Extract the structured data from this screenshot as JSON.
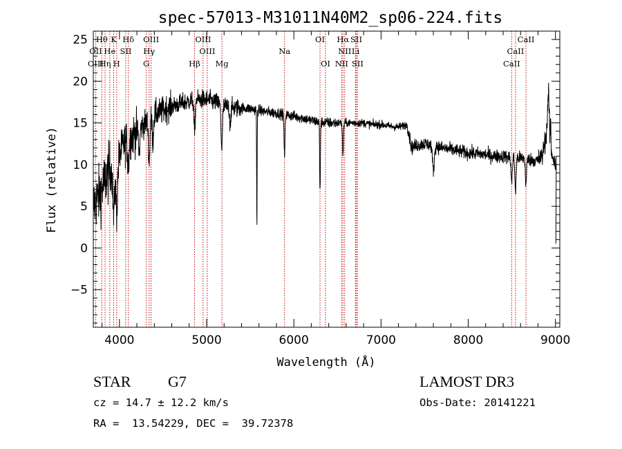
{
  "chart_data": {
    "type": "line",
    "title": "spec-57013-M31011N40M2_sp06-224.fits",
    "xlabel": "Wavelength (Å)",
    "ylabel": "Flux (relative)",
    "xlim": [
      3700,
      9050
    ],
    "ylim": [
      -9.5,
      26
    ],
    "xticks": [
      4000,
      5000,
      6000,
      7000,
      8000,
      9000
    ],
    "xtick_labels": [
      "4000",
      "5000",
      "6000",
      "7000",
      "8000",
      "9000"
    ],
    "yticks": [
      -5,
      0,
      5,
      10,
      15,
      20,
      25
    ],
    "ytick_labels": [
      "−5",
      "0",
      "5",
      "10",
      "15",
      "20",
      "25"
    ],
    "continuum": [
      [
        3700,
        5
      ],
      [
        3750,
        6
      ],
      [
        3800,
        7
      ],
      [
        3850,
        8.5
      ],
      [
        3900,
        9.5
      ],
      [
        3950,
        10
      ],
      [
        4000,
        11
      ],
      [
        4050,
        12.5
      ],
      [
        4100,
        13
      ],
      [
        4200,
        14
      ],
      [
        4300,
        15
      ],
      [
        4400,
        16
      ],
      [
        4500,
        16.5
      ],
      [
        4600,
        17
      ],
      [
        4700,
        17.3
      ],
      [
        4800,
        17.6
      ],
      [
        4900,
        17.8
      ],
      [
        5000,
        17.8
      ],
      [
        5100,
        17.5
      ],
      [
        5200,
        17
      ],
      [
        5300,
        16.8
      ],
      [
        5400,
        16.8
      ],
      [
        5500,
        16.7
      ],
      [
        5600,
        16.5
      ],
      [
        5700,
        16.3
      ],
      [
        5800,
        16.2
      ],
      [
        5900,
        16
      ],
      [
        6000,
        15.8
      ],
      [
        6100,
        15.6
      ],
      [
        6200,
        15.3
      ],
      [
        6300,
        15.1
      ],
      [
        6400,
        15
      ],
      [
        6500,
        15
      ],
      [
        6600,
        15
      ],
      [
        6700,
        15
      ],
      [
        6800,
        15
      ],
      [
        6900,
        14.8
      ],
      [
        7000,
        14.8
      ],
      [
        7100,
        14.6
      ],
      [
        7200,
        14.5
      ],
      [
        7300,
        14.8
      ],
      [
        7350,
        12
      ],
      [
        7400,
        12.3
      ],
      [
        7500,
        12.5
      ],
      [
        7600,
        12.3
      ],
      [
        7700,
        12
      ],
      [
        7800,
        11.8
      ],
      [
        7900,
        11.6
      ],
      [
        8000,
        11.4
      ],
      [
        8100,
        11.3
      ],
      [
        8200,
        11.2
      ],
      [
        8300,
        11
      ],
      [
        8400,
        11
      ],
      [
        8500,
        10.8
      ],
      [
        8600,
        10.8
      ],
      [
        8700,
        10.6
      ],
      [
        8800,
        10.5
      ],
      [
        8850,
        11
      ],
      [
        8900,
        14
      ],
      [
        8920,
        19
      ],
      [
        8940,
        12
      ],
      [
        9000,
        10
      ]
    ],
    "absorption_features": [
      [
        3934,
        6,
        14
      ],
      [
        3968,
        6,
        14
      ],
      [
        4102,
        3,
        12
      ],
      [
        4227,
        3,
        10
      ],
      [
        4340,
        5,
        12
      ],
      [
        4383,
        3,
        10
      ],
      [
        4861,
        4,
        10
      ],
      [
        5173,
        5,
        12
      ],
      [
        5270,
        2,
        10
      ],
      [
        5576,
        14.5,
        4
      ],
      [
        5893,
        5,
        8
      ],
      [
        6300,
        8.5,
        6
      ],
      [
        6563,
        4,
        8
      ],
      [
        7600,
        3,
        15
      ],
      [
        8498,
        3,
        10
      ],
      [
        8542,
        4,
        10
      ],
      [
        8662,
        3,
        10
      ]
    ],
    "emission_features": [
      [
        8944,
        4,
        4
      ]
    ],
    "spectral_lines": [
      {
        "label": "Hθ",
        "wavelength": 3798,
        "row": 0
      },
      {
        "label": "K",
        "wavelength": 3934,
        "row": 0
      },
      {
        "label": "Hδ",
        "wavelength": 4102,
        "row": 0
      },
      {
        "label": "OIII",
        "wavelength": 4363,
        "row": 0
      },
      {
        "label": "OIII",
        "wavelength": 4959,
        "row": 0
      },
      {
        "label": "OI",
        "wavelength": 6300,
        "row": 0
      },
      {
        "label": "Hα",
        "wavelength": 6563,
        "row": 0
      },
      {
        "label": "SII",
        "wavelength": 6716,
        "row": 0
      },
      {
        "label": "CaII",
        "wavelength": 8662,
        "row": 0
      },
      {
        "label": "OII",
        "wavelength": 3727,
        "row": 1
      },
      {
        "label": "He",
        "wavelength": 3889,
        "row": 1
      },
      {
        "label": "SII",
        "wavelength": 4072,
        "row": 1
      },
      {
        "label": "Hγ",
        "wavelength": 4340,
        "row": 1
      },
      {
        "label": "OIII",
        "wavelength": 5007,
        "row": 1
      },
      {
        "label": "Na",
        "wavelength": 5893,
        "row": 1
      },
      {
        "label": "NII",
        "wavelength": 6583,
        "row": 1
      },
      {
        "label": "Li",
        "wavelength": 6708,
        "row": 1
      },
      {
        "label": "CaII",
        "wavelength": 8542,
        "row": 1
      },
      {
        "label": "OIII",
        "wavelength": 3727,
        "row": 2
      },
      {
        "label": "Hη",
        "wavelength": 3835,
        "row": 2
      },
      {
        "label": "H",
        "wavelength": 3968,
        "row": 2
      },
      {
        "label": "G",
        "wavelength": 4307,
        "row": 2
      },
      {
        "label": "Hβ",
        "wavelength": 4861,
        "row": 2
      },
      {
        "label": "Mg",
        "wavelength": 5175,
        "row": 2
      },
      {
        "label": "OI",
        "wavelength": 6363,
        "row": 2
      },
      {
        "label": "NII",
        "wavelength": 6548,
        "row": 2
      },
      {
        "label": "SII",
        "wavelength": 6731,
        "row": 2
      },
      {
        "label": "CaII",
        "wavelength": 8498,
        "row": 2
      }
    ],
    "line_marker_wavelengths": [
      3727,
      3798,
      3835,
      3889,
      3934,
      3968,
      4072,
      4102,
      4307,
      4340,
      4363,
      4861,
      4959,
      5007,
      5175,
      5893,
      6300,
      6363,
      6548,
      6563,
      6583,
      6708,
      6716,
      6731,
      8498,
      8542,
      8662
    ]
  },
  "info": {
    "object_class": "STAR",
    "subclass": "G7",
    "survey": "LAMOST DR3",
    "redshift": "cz = 14.7 ± 12.2 km/s",
    "obs_date": "Obs-Date: 20141221",
    "coords": "RA =  13.54229, DEC =  39.72378"
  }
}
